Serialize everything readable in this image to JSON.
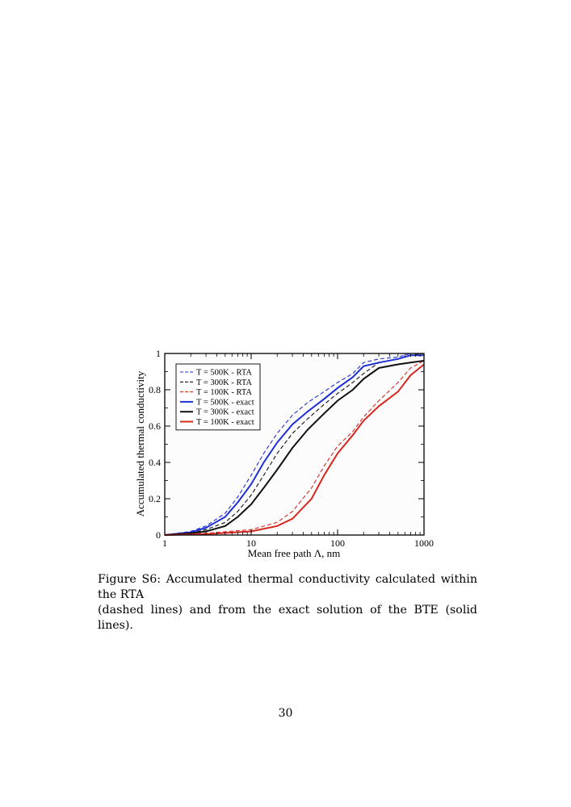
{
  "figure": {
    "chart_data": {
      "type": "line",
      "xscale": "log",
      "xlim": [
        1,
        1000
      ],
      "ylim": [
        0,
        1
      ],
      "xlabel": "Mean free path Λ, nm",
      "ylabel": "Accumulated thermal conductivity",
      "xticks": [
        "1",
        "10",
        "100",
        "1000"
      ],
      "yticks": [
        "0",
        "0.2",
        "0.4",
        "0.6",
        "0.8",
        "1"
      ],
      "legend_position": "top-left",
      "series": [
        {
          "name": "T = 500K - RTA",
          "color": "#1f2fd6",
          "dash": "dashed",
          "x": [
            1,
            2,
            3,
            5,
            7,
            10,
            14,
            20,
            30,
            45,
            70,
            100,
            150,
            200,
            300,
            500,
            700,
            1000
          ],
          "y": [
            0.0,
            0.02,
            0.05,
            0.12,
            0.21,
            0.33,
            0.45,
            0.56,
            0.66,
            0.73,
            0.79,
            0.84,
            0.89,
            0.95,
            0.97,
            0.98,
            1.0,
            1.0
          ]
        },
        {
          "name": "T = 300K - RTA",
          "color": "#111111",
          "dash": "dashed",
          "x": [
            1,
            2,
            3,
            5,
            7,
            10,
            14,
            20,
            30,
            45,
            70,
            100,
            150,
            200,
            300,
            500,
            700,
            1000
          ],
          "y": [
            0.0,
            0.01,
            0.03,
            0.07,
            0.13,
            0.22,
            0.33,
            0.45,
            0.56,
            0.64,
            0.72,
            0.78,
            0.84,
            0.89,
            0.95,
            0.97,
            0.99,
            1.0
          ]
        },
        {
          "name": "T = 100K - RTA",
          "color": "#d6281e",
          "dash": "dashed",
          "x": [
            1,
            3,
            10,
            20,
            30,
            50,
            70,
            100,
            150,
            200,
            300,
            500,
            700,
            1000
          ],
          "y": [
            0.0,
            0.01,
            0.03,
            0.07,
            0.13,
            0.26,
            0.38,
            0.49,
            0.57,
            0.65,
            0.74,
            0.84,
            0.92,
            0.96
          ]
        },
        {
          "name": "T = 500K - exact",
          "color": "#1f2fd6",
          "dash": "solid",
          "x": [
            1,
            2,
            3,
            5,
            7,
            10,
            14,
            20,
            30,
            45,
            70,
            100,
            150,
            200,
            300,
            500,
            700,
            1000
          ],
          "y": [
            0.0,
            0.015,
            0.04,
            0.1,
            0.18,
            0.28,
            0.4,
            0.51,
            0.61,
            0.68,
            0.75,
            0.81,
            0.87,
            0.93,
            0.95,
            0.97,
            0.99,
            0.99
          ]
        },
        {
          "name": "T = 300K - exact",
          "color": "#111111",
          "dash": "solid",
          "x": [
            1,
            2,
            3,
            5,
            7,
            10,
            14,
            20,
            30,
            45,
            70,
            100,
            150,
            200,
            300,
            500,
            700,
            1000
          ],
          "y": [
            0.0,
            0.01,
            0.02,
            0.05,
            0.1,
            0.17,
            0.26,
            0.36,
            0.48,
            0.58,
            0.67,
            0.74,
            0.8,
            0.86,
            0.92,
            0.94,
            0.95,
            0.96
          ]
        },
        {
          "name": "T = 100K - exact",
          "color": "#d6281e",
          "dash": "solid",
          "x": [
            1,
            3,
            10,
            20,
            30,
            50,
            70,
            100,
            150,
            200,
            300,
            500,
            700,
            1000
          ],
          "y": [
            0.0,
            0.005,
            0.02,
            0.05,
            0.09,
            0.2,
            0.33,
            0.45,
            0.55,
            0.63,
            0.71,
            0.79,
            0.88,
            0.94
          ]
        }
      ]
    },
    "caption_line1": "Figure S6: Accumulated thermal conductivity calculated within the RTA",
    "caption_line2": "(dashed lines) and from the exact solution of the BTE (solid lines)."
  },
  "page_number": "30"
}
